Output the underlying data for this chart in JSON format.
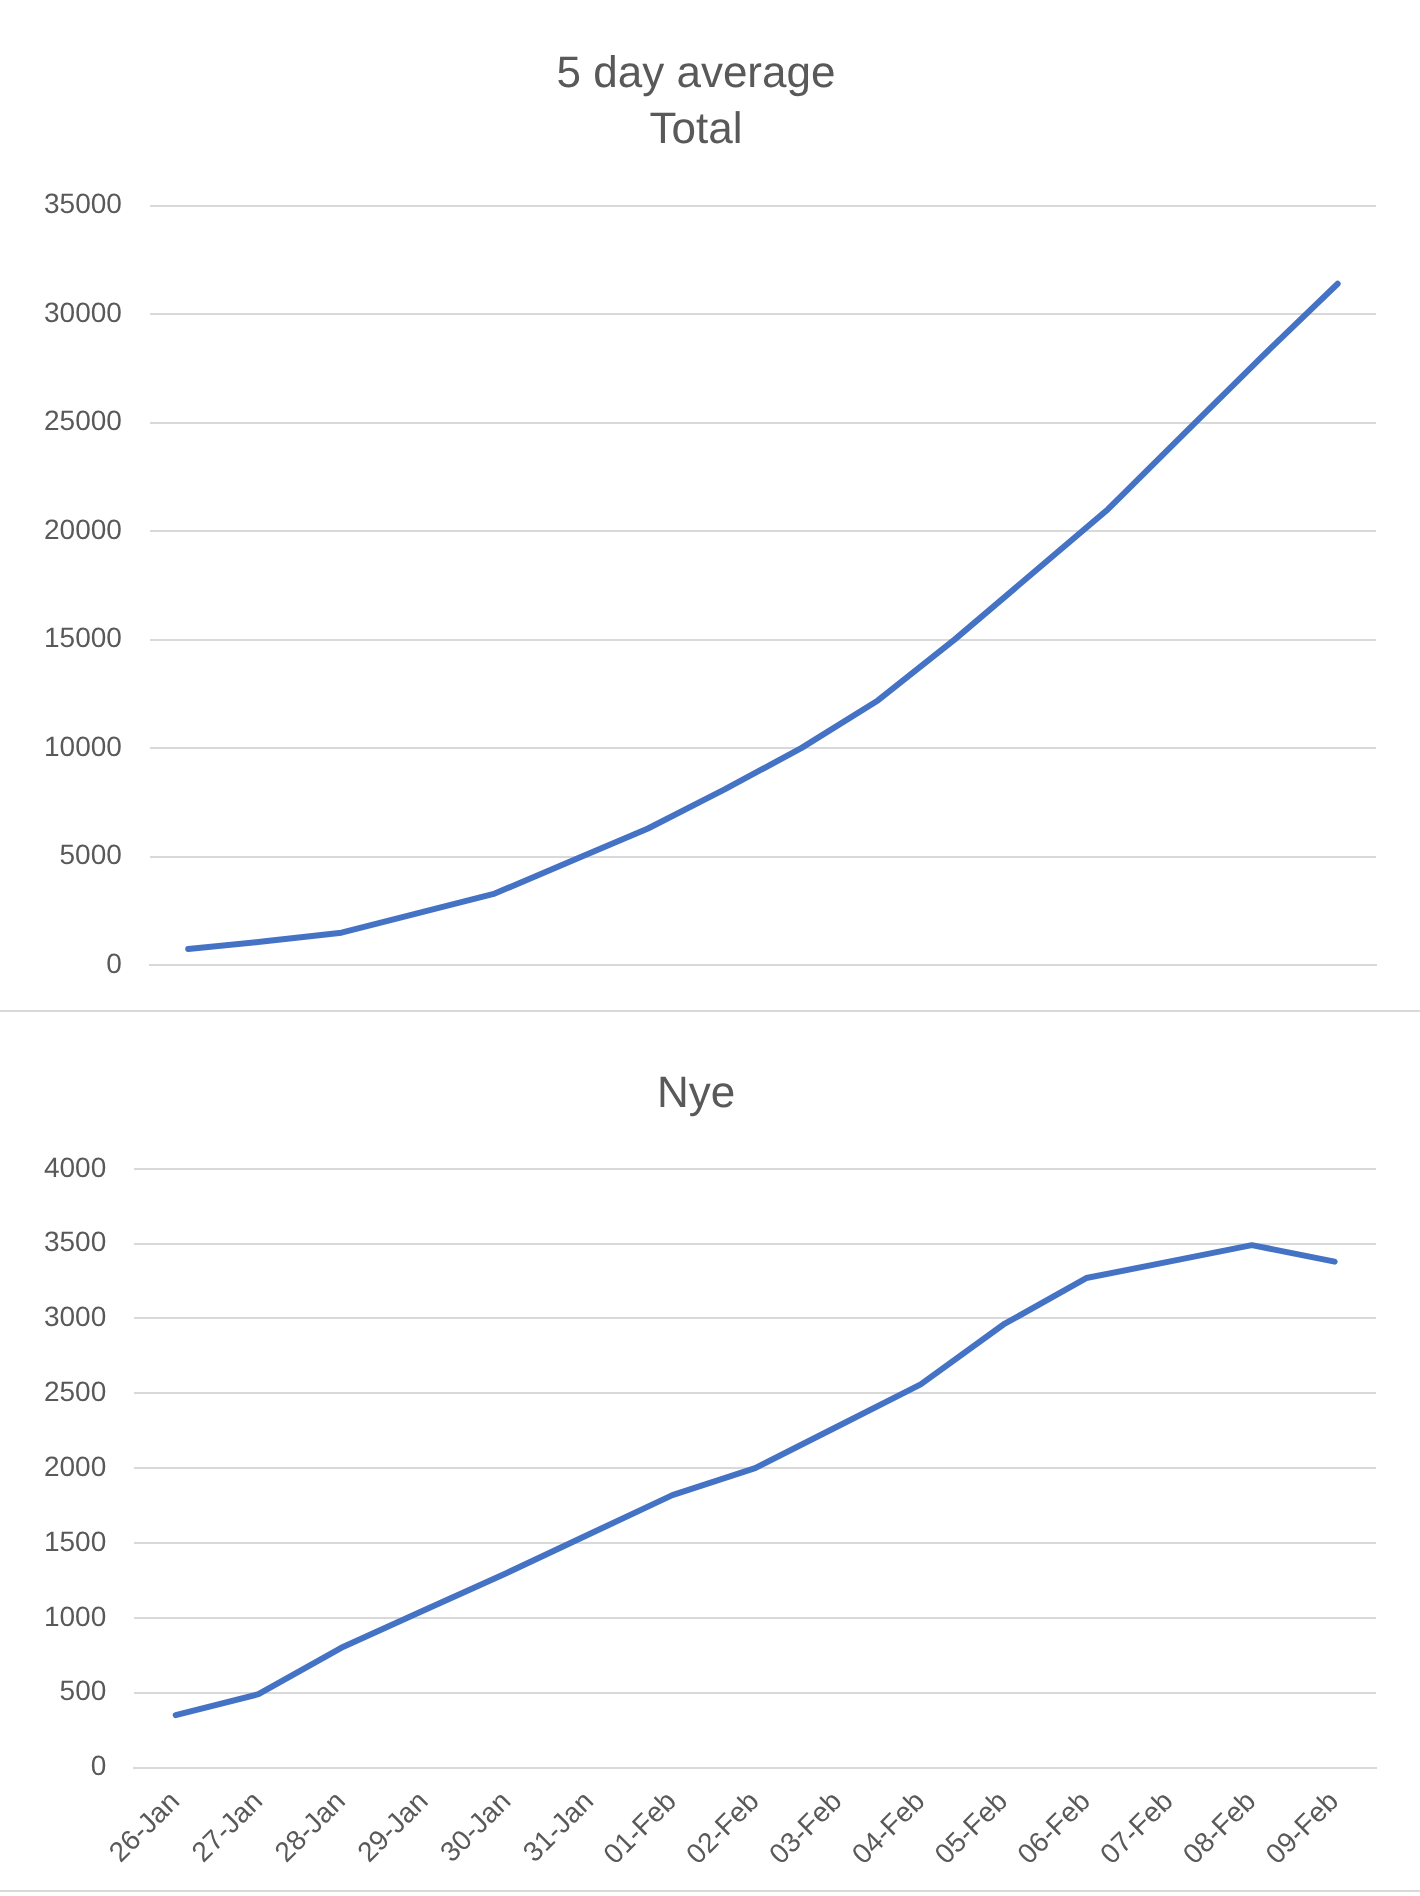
{
  "chart_data": [
    {
      "type": "line",
      "title": "5 day average",
      "subtitle": "Total",
      "categories": [
        null,
        null,
        null,
        null,
        null,
        null,
        null,
        null,
        null,
        null,
        null,
        null,
        null,
        null,
        null,
        null
      ],
      "series": [
        {
          "color": "#4472c4",
          "values": [
            750,
            1100,
            1500,
            2400,
            3300,
            4800,
            6300,
            8100,
            10000,
            12200,
            15000,
            18000,
            21000,
            24500,
            28000,
            31400
          ]
        }
      ],
      "ylim": [
        0,
        35000
      ],
      "yticks": [
        0,
        5000,
        10000,
        15000,
        20000,
        25000,
        30000,
        35000
      ],
      "grid": "y",
      "legend": false,
      "marker": "none",
      "tick_labels": "y"
    },
    {
      "type": "line",
      "title": "Nye",
      "categories": [
        "26-Jan",
        "27-Jan",
        "28-Jan",
        "29-Jan",
        "30-Jan",
        "31-Jan",
        "01-Feb",
        "02-Feb",
        "03-Feb",
        "04-Feb",
        "05-Feb",
        "06-Feb",
        "07-Feb",
        "08-Feb",
        "09-Feb"
      ],
      "series": [
        {
          "color": "#4472c4",
          "values": [
            350,
            490,
            800,
            1050,
            1300,
            1560,
            1820,
            2000,
            2280,
            2560,
            2960,
            3270,
            3380,
            3490,
            3380
          ]
        }
      ],
      "ylim": [
        0,
        4000
      ],
      "yticks": [
        0,
        500,
        1000,
        1500,
        2000,
        2500,
        3000,
        3500,
        4000
      ],
      "grid": "y",
      "legend": false,
      "marker": "none"
    }
  ]
}
